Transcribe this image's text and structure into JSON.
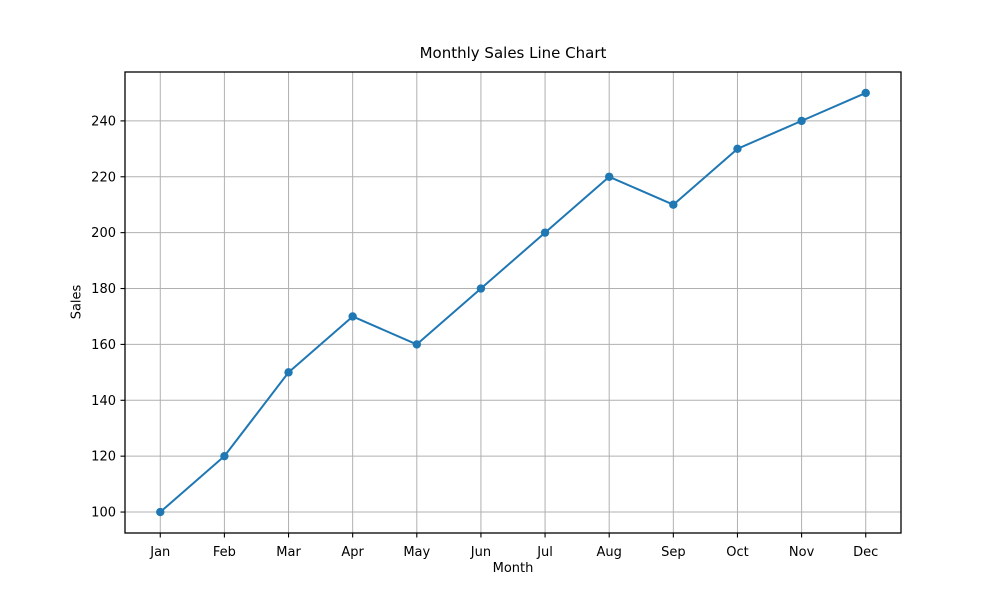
{
  "figure": {
    "background": "#ffffff"
  },
  "chart_data": {
    "type": "line",
    "title": "Monthly Sales Line Chart",
    "xlabel": "Month",
    "ylabel": "Sales",
    "categories": [
      "Jan",
      "Feb",
      "Mar",
      "Apr",
      "May",
      "Jun",
      "Jul",
      "Aug",
      "Sep",
      "Oct",
      "Nov",
      "Dec"
    ],
    "values": [
      100,
      120,
      150,
      170,
      160,
      180,
      200,
      220,
      210,
      230,
      240,
      250
    ],
    "yticks": [
      100,
      120,
      140,
      160,
      180,
      200,
      220,
      240
    ],
    "ylim": [
      92.5,
      257.5
    ],
    "xlim": [
      -0.55,
      11.55
    ],
    "grid": true,
    "legend": false,
    "line_color": "#1f77b4",
    "marker": "o",
    "grid_color": "#b0b0b0",
    "axis_color": "#000000",
    "text_color": "#000000"
  }
}
